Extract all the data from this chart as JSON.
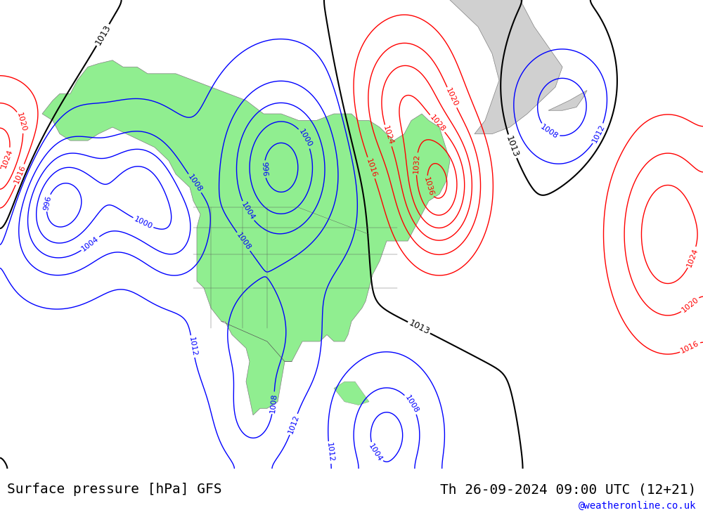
{
  "title_left": "Surface pressure [hPa] GFS",
  "title_right": "Th 26-09-2024 09:00 UTC (12+21)",
  "watermark": "@weatheronline.co.uk",
  "bg_color": "#e8e8e8",
  "land_color": "#90EE90",
  "ocean_color": "#e8e8e8",
  "fig_width": 10.0,
  "fig_height": 7.33,
  "dpi": 100,
  "bottom_bar_color": "#f0f0f0",
  "title_fontsize": 14,
  "watermark_fontsize": 10
}
